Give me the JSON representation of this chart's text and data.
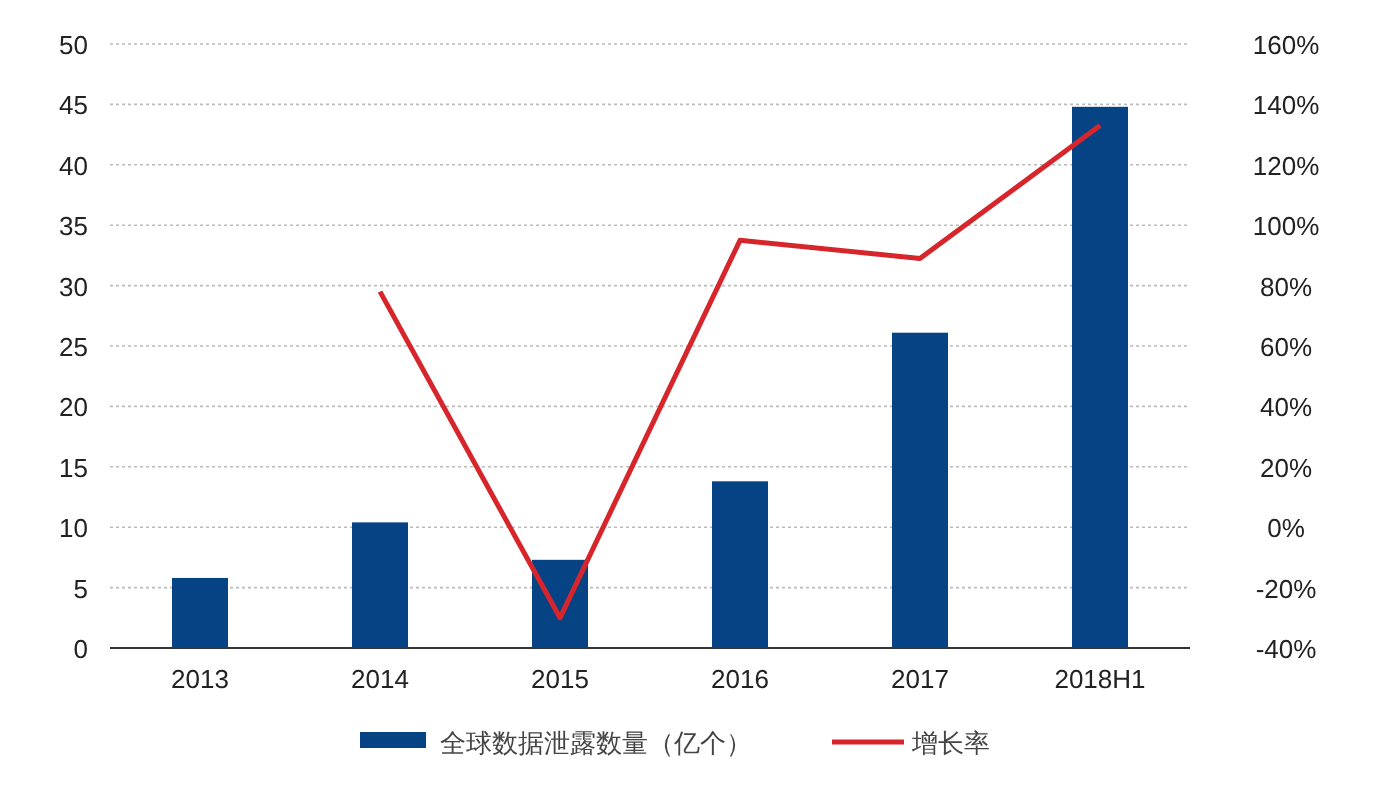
{
  "chart_data": {
    "type": "bar",
    "categories": [
      "2013",
      "2014",
      "2015",
      "2016",
      "2017",
      "2018H1"
    ],
    "series": [
      {
        "name": "全球数据泄露数量（亿个）",
        "color": "#064385",
        "values": [
          5.8,
          10.4,
          7.3,
          13.8,
          26.1,
          44.8
        ]
      },
      {
        "name": "增长率",
        "type": "line",
        "axis": "y2",
        "color": "#d7262b",
        "values": [
          null,
          78,
          -30,
          95,
          89,
          133
        ]
      }
    ],
    "ylim": [
      0,
      50
    ],
    "yticks": [
      0,
      5,
      10,
      15,
      20,
      25,
      30,
      35,
      40,
      45,
      50
    ],
    "y2lim": [
      -40,
      160
    ],
    "y2ticks": [
      {
        "value": -40,
        "label": "-40%"
      },
      {
        "value": -20,
        "label": "-20%"
      },
      {
        "value": 0,
        "label": "0%"
      },
      {
        "value": 20,
        "label": "20%"
      },
      {
        "value": 40,
        "label": "40%"
      },
      {
        "value": 60,
        "label": "60%"
      },
      {
        "value": 80,
        "label": "80%"
      },
      {
        "value": 100,
        "label": "100%"
      },
      {
        "value": 120,
        "label": "120%"
      },
      {
        "value": 140,
        "label": "140%"
      },
      {
        "value": 160,
        "label": "160%"
      }
    ],
    "grid": "y",
    "legend": "bottom",
    "line_style": "solid",
    "marker": "none"
  }
}
